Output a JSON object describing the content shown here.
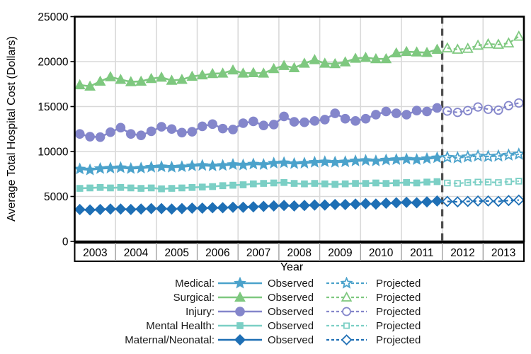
{
  "figure": {
    "background": "#ffffff",
    "axis_color": "#000000",
    "grid_color": "#d9d9d9",
    "refline_color": "#4d4d4d",
    "year_band_separator_color": "#999999"
  },
  "chart_data": {
    "type": "line",
    "title": "",
    "xlabel": "Year",
    "ylabel": "Average Total Hospital Cost (Dollars)",
    "ylim": [
      0,
      25000
    ],
    "yticks": [
      "0",
      "5000",
      "10000",
      "15000",
      "20000",
      "25000"
    ],
    "ytick_values": [
      0,
      5000,
      10000,
      15000,
      20000,
      25000
    ],
    "years": [
      "2003",
      "2004",
      "2005",
      "2006",
      "2007",
      "2008",
      "2009",
      "2010",
      "2011",
      "2012",
      "2013"
    ],
    "x_unit": "quarterly",
    "observed_range": "2003Q1-2011Q4",
    "projected_range": "2012Q1-2013Q4",
    "refline_between_years": [
      "2011",
      "2012"
    ],
    "grid": "on",
    "legend_position": "bottom",
    "legend": {
      "observed_label": "Observed",
      "projected_label": "Projected"
    },
    "series": [
      {
        "name": "Medical",
        "label": "Medical:",
        "marker": "star",
        "color": "#4BA2CB",
        "observed": [
          8050,
          7950,
          8100,
          8150,
          8200,
          8100,
          8150,
          8250,
          8300,
          8250,
          8300,
          8400,
          8450,
          8400,
          8450,
          8550,
          8500,
          8600,
          8550,
          8700,
          8750,
          8650,
          8700,
          8800,
          8850,
          8800,
          8850,
          8950,
          9000,
          8950,
          9050,
          9100,
          9150,
          9100,
          9200,
          9300
        ],
        "projected": [
          9350,
          9300,
          9400,
          9500,
          9450,
          9500,
          9600,
          9700
        ]
      },
      {
        "name": "Surgical",
        "label": "Surgical:",
        "marker": "triangle",
        "color": "#7EC87F",
        "observed": [
          17400,
          17250,
          17800,
          18300,
          18000,
          17750,
          17800,
          18100,
          18250,
          17900,
          18000,
          18350,
          18500,
          18650,
          18700,
          19050,
          18700,
          18750,
          18700,
          19200,
          19550,
          19300,
          19800,
          20200,
          19800,
          19750,
          19950,
          20350,
          20450,
          20300,
          20300,
          20950,
          21100,
          21050,
          21000,
          21350
        ],
        "projected": [
          21500,
          21350,
          21450,
          21800,
          21950,
          21900,
          22050,
          22800
        ]
      },
      {
        "name": "Injury",
        "label": "Injury:",
        "marker": "circle",
        "color": "#8486CB",
        "observed": [
          11950,
          11650,
          11600,
          12150,
          12650,
          11950,
          11800,
          12250,
          12750,
          12500,
          12100,
          12200,
          12800,
          13050,
          12550,
          12450,
          13150,
          13350,
          12900,
          13000,
          13900,
          13300,
          13250,
          13400,
          13550,
          14250,
          13650,
          13400,
          13650,
          14100,
          14450,
          14250,
          14100,
          14550,
          14450,
          14850
        ],
        "projected": [
          14500,
          14350,
          14550,
          14950,
          14700,
          14600,
          15100,
          15400
        ]
      },
      {
        "name": "Mental Health",
        "label": "Mental Health:",
        "marker": "square",
        "color": "#7BCFC5",
        "observed": [
          5900,
          5950,
          6000,
          5950,
          6000,
          5950,
          5900,
          5950,
          5850,
          5900,
          5950,
          6000,
          6050,
          6100,
          6200,
          6250,
          6300,
          6400,
          6450,
          6500,
          6550,
          6450,
          6400,
          6450,
          6400,
          6350,
          6400,
          6450,
          6450,
          6500,
          6450,
          6500,
          6550,
          6500,
          6600,
          6650
        ],
        "projected": [
          6500,
          6450,
          6550,
          6600,
          6600,
          6550,
          6650,
          6700
        ]
      },
      {
        "name": "Maternal/Neonatal",
        "label": "Maternal/Neonatal:",
        "marker": "diamond",
        "color": "#1E6FB5",
        "observed": [
          3550,
          3500,
          3550,
          3600,
          3600,
          3550,
          3600,
          3650,
          3650,
          3600,
          3650,
          3700,
          3700,
          3750,
          3750,
          3800,
          3800,
          3850,
          3900,
          3950,
          4000,
          3950,
          4000,
          4050,
          4050,
          4100,
          4100,
          4150,
          4200,
          4150,
          4250,
          4300,
          4350,
          4300,
          4400,
          4500
        ],
        "projected": [
          4450,
          4400,
          4450,
          4500,
          4500,
          4450,
          4550,
          4600
        ]
      }
    ]
  }
}
